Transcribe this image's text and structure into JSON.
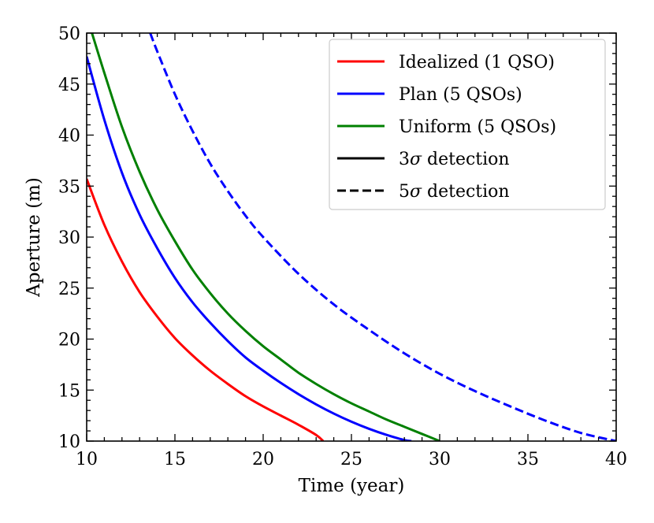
{
  "chart_data": {
    "type": "line",
    "title": "",
    "xlabel": "Time (year)",
    "ylabel": "Aperture (m)",
    "xlim": [
      10,
      40
    ],
    "ylim": [
      10,
      50
    ],
    "xticks": [
      10,
      15,
      20,
      25,
      30,
      35,
      40
    ],
    "yticks": [
      10,
      15,
      20,
      25,
      30,
      35,
      40,
      45,
      50
    ],
    "grid": false,
    "legend_position": "top-right",
    "series": [
      {
        "name": "Idealized (1 QSO)",
        "color": "#ff0000",
        "dash": "solid",
        "detection": "3σ",
        "x": [
          10,
          11,
          12,
          13,
          14,
          15,
          16,
          17,
          18,
          19,
          20,
          21,
          22,
          23,
          23.4
        ],
        "y": [
          35.7,
          31.2,
          27.6,
          24.6,
          22.2,
          20.1,
          18.4,
          16.9,
          15.6,
          14.4,
          13.4,
          12.5,
          11.6,
          10.6,
          10.0
        ]
      },
      {
        "name": "Plan (5 QSOs)",
        "color": "#0000ff",
        "dash": "solid",
        "detection": "3σ",
        "x": [
          10,
          11,
          12,
          13,
          14,
          15,
          16,
          17,
          18,
          19,
          20,
          21,
          22,
          23,
          24,
          25,
          26,
          27,
          28,
          28.4
        ],
        "y": [
          47.7,
          41.5,
          36.3,
          32.2,
          28.9,
          26.0,
          23.6,
          21.6,
          19.8,
          18.2,
          16.9,
          15.7,
          14.6,
          13.6,
          12.7,
          11.9,
          11.2,
          10.6,
          10.1,
          10.0
        ]
      },
      {
        "name": "Uniform (5 QSOs)",
        "color": "#008000",
        "dash": "solid",
        "detection": "3σ",
        "x": [
          10.3,
          11,
          12,
          13,
          14,
          15,
          16,
          17,
          18,
          19,
          20,
          21,
          22,
          23,
          24,
          25,
          26,
          27,
          28,
          29,
          30
        ],
        "y": [
          50.0,
          46.1,
          40.8,
          36.4,
          32.7,
          29.6,
          26.8,
          24.5,
          22.5,
          20.8,
          19.3,
          18.0,
          16.7,
          15.6,
          14.6,
          13.7,
          12.9,
          12.1,
          11.4,
          10.7,
          10.0
        ]
      },
      {
        "name": "Plan (5 QSOs)",
        "color": "#0000ff",
        "dash": "dashed",
        "detection": "5σ",
        "x": [
          13.6,
          14,
          15,
          16,
          17,
          18,
          19,
          20,
          22,
          24,
          26,
          28,
          30,
          32,
          34,
          36,
          38,
          40
        ],
        "y": [
          50.0,
          48.2,
          44.0,
          40.4,
          37.2,
          34.5,
          32.1,
          30.0,
          26.4,
          23.4,
          20.9,
          18.6,
          16.6,
          14.9,
          13.4,
          12.0,
          10.8,
          10.0
        ]
      }
    ],
    "legend": {
      "entries": [
        {
          "label": "Idealized (1 QSO)",
          "color": "#ff0000",
          "dash": "solid"
        },
        {
          "label": "Plan (5 QSOs)",
          "color": "#0000ff",
          "dash": "solid"
        },
        {
          "label": "Uniform (5 QSOs)",
          "color": "#008000",
          "dash": "solid"
        },
        {
          "label": "detection",
          "prefix": "3",
          "sigma": "σ",
          "color": "#000000",
          "dash": "solid"
        },
        {
          "label": "detection",
          "prefix": "5",
          "sigma": "σ",
          "color": "#000000",
          "dash": "dashed"
        }
      ]
    }
  }
}
